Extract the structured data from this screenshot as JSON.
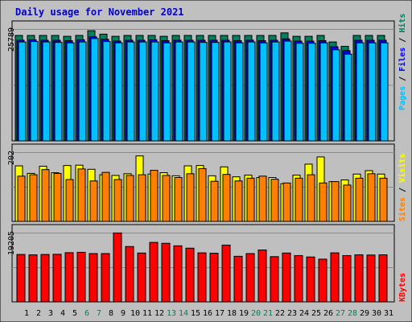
{
  "title": "Daily usage for November 2021",
  "colors": {
    "frame_bg": "#c0c0c0",
    "plot_bg": "#bfbfbf",
    "title": "#0000cc",
    "hits": "#00805c",
    "files": "#0000ff",
    "pages": "#00c0ff",
    "visits": "#ffff00",
    "sites": "#ff8000",
    "kbytes": "#ff0000"
  },
  "legend": {
    "hits": "Hits",
    "files": "Files",
    "pages": "Pages",
    "visits": "Visits",
    "sites": "Sites",
    "kbytes": "KBytes",
    "separator": "/"
  },
  "chart_data": [
    {
      "type": "bar",
      "panel": "hits-files-pages",
      "categories": [
        "1",
        "2",
        "3",
        "4",
        "5",
        "6",
        "7",
        "8",
        "9",
        "10",
        "11",
        "12",
        "13",
        "14",
        "15",
        "16",
        "17",
        "18",
        "19",
        "20",
        "21",
        "22",
        "23",
        "24",
        "25",
        "26",
        "27",
        "28",
        "29",
        "30",
        "31"
      ],
      "weekend_categories": [
        "6",
        "7",
        "13",
        "14",
        "20",
        "21",
        "27",
        "28"
      ],
      "ymax_label": "25789",
      "ylim": [
        0,
        25789
      ],
      "series": [
        {
          "name": "Hits",
          "values": [
            24300,
            24300,
            24300,
            24300,
            24100,
            24300,
            25400,
            24600,
            24100,
            24300,
            24300,
            24300,
            24100,
            24300,
            24300,
            24300,
            24300,
            24300,
            24300,
            24300,
            24300,
            24300,
            24900,
            24100,
            24100,
            24300,
            22800,
            21800,
            24300,
            24300,
            24300
          ]
        },
        {
          "name": "Files",
          "values": [
            23200,
            23300,
            23200,
            23200,
            23100,
            23300,
            24000,
            23400,
            23000,
            23200,
            23200,
            23300,
            23100,
            23200,
            23200,
            23200,
            23200,
            23200,
            23100,
            23200,
            23100,
            23200,
            23500,
            23000,
            23000,
            23100,
            21700,
            20800,
            23200,
            23200,
            23200
          ]
        },
        {
          "name": "Pages",
          "values": [
            22800,
            22900,
            22800,
            22700,
            22600,
            22800,
            23600,
            22900,
            22600,
            22800,
            22800,
            22800,
            22600,
            22800,
            22800,
            22700,
            22700,
            22800,
            22600,
            22800,
            22600,
            22800,
            23000,
            22500,
            22500,
            22600,
            21000,
            20000,
            22600,
            22600,
            22600
          ]
        }
      ]
    },
    {
      "type": "bar",
      "panel": "visits-sites",
      "categories": [
        "1",
        "2",
        "3",
        "4",
        "5",
        "6",
        "7",
        "8",
        "9",
        "10",
        "11",
        "12",
        "13",
        "14",
        "15",
        "16",
        "17",
        "18",
        "19",
        "20",
        "21",
        "22",
        "23",
        "24",
        "25",
        "26",
        "27",
        "28",
        "29",
        "30",
        "31"
      ],
      "ymax_label": "202",
      "ylim": [
        0,
        202
      ],
      "series": [
        {
          "name": "Visits",
          "values": [
            162,
            140,
            161,
            142,
            163,
            164,
            152,
            136,
            134,
            139,
            191,
            138,
            142,
            133,
            162,
            163,
            133,
            159,
            130,
            135,
            128,
            128,
            110,
            135,
            167,
            188,
            116,
            121,
            138,
            148,
            138
          ]
        },
        {
          "name": "Sites",
          "values": [
            132,
            136,
            151,
            140,
            122,
            153,
            118,
            143,
            122,
            134,
            136,
            149,
            134,
            128,
            139,
            154,
            117,
            137,
            118,
            126,
            132,
            123,
            112,
            126,
            136,
            112,
            116,
            106,
            126,
            139,
            126
          ]
        }
      ]
    },
    {
      "type": "bar",
      "panel": "kbytes",
      "categories": [
        "1",
        "2",
        "3",
        "4",
        "5",
        "6",
        "7",
        "8",
        "9",
        "10",
        "11",
        "12",
        "13",
        "14",
        "15",
        "16",
        "17",
        "18",
        "19",
        "20",
        "21",
        "22",
        "23",
        "24",
        "25",
        "26",
        "27",
        "28",
        "29",
        "30",
        "31"
      ],
      "ymax_label": "19205",
      "ylim": [
        0,
        19205
      ],
      "series": [
        {
          "name": "KBytes",
          "values": [
            13150,
            13050,
            13150,
            13200,
            13650,
            13750,
            13400,
            13400,
            19120,
            15350,
            13550,
            16500,
            16250,
            15550,
            14900,
            13600,
            13500,
            15750,
            12650,
            13400,
            14400,
            12550,
            13550,
            12850,
            12450,
            11850,
            13600,
            12850,
            13050,
            13000,
            13050
          ]
        }
      ]
    }
  ]
}
